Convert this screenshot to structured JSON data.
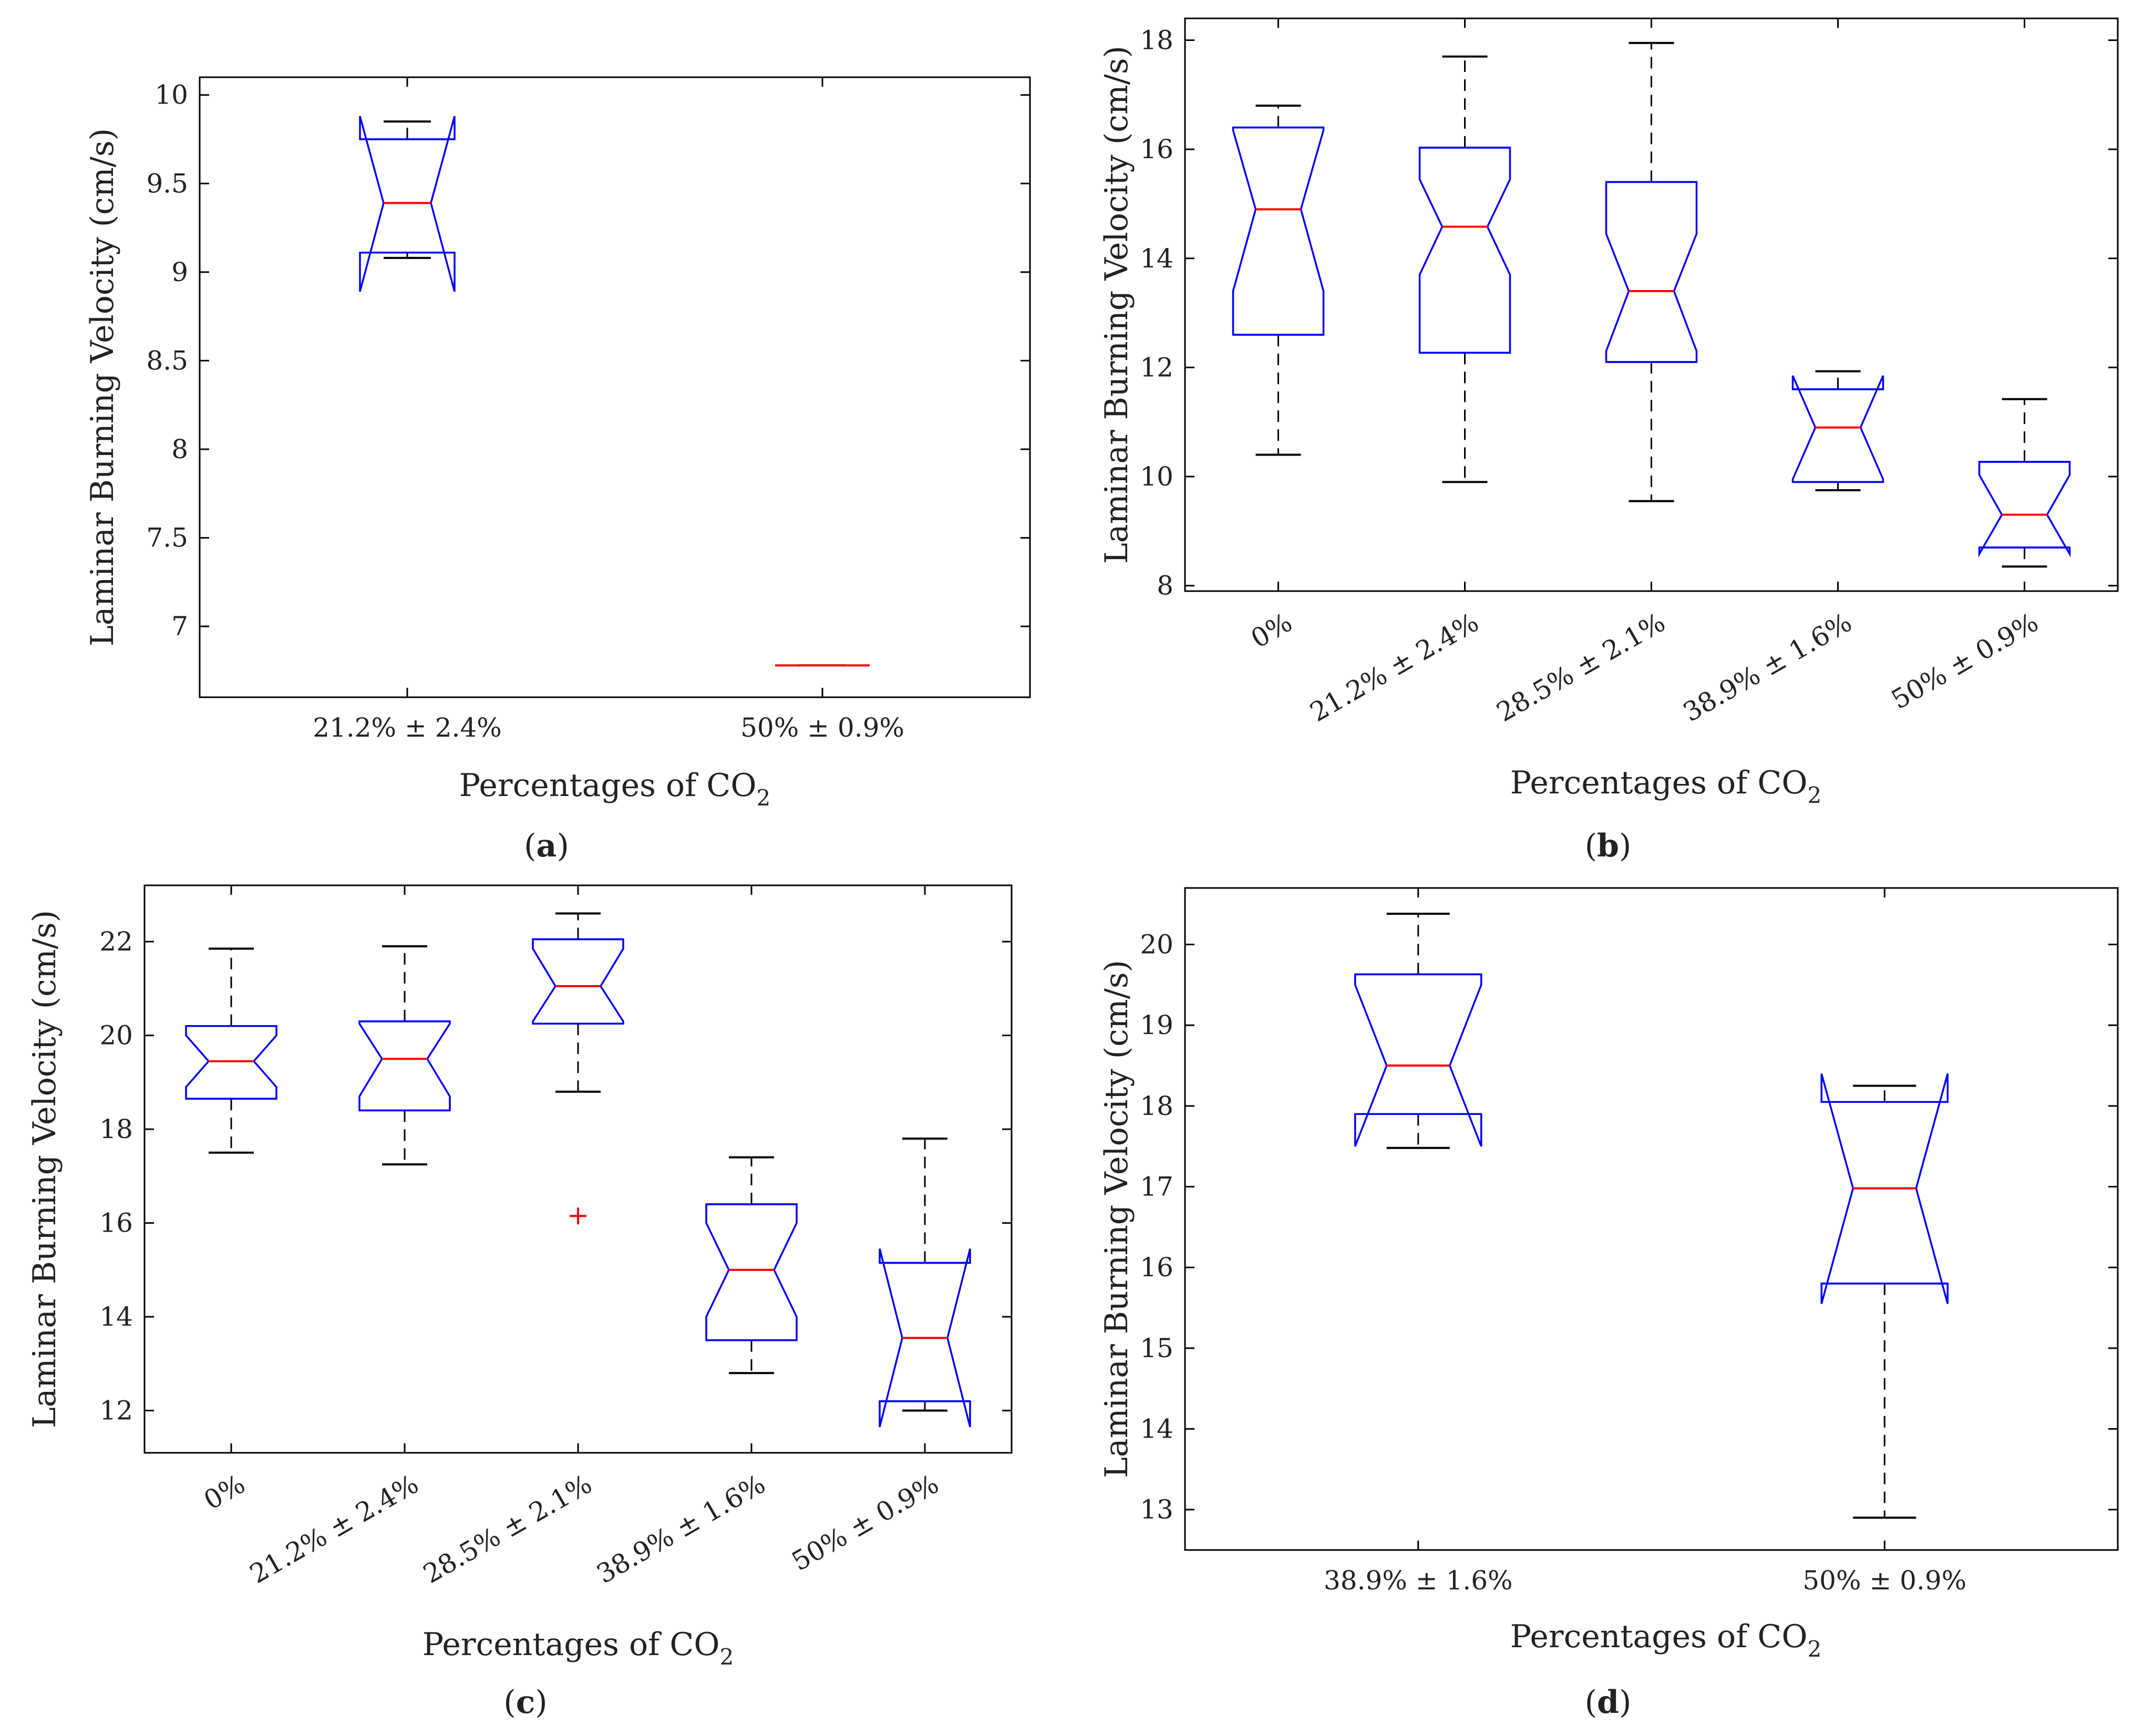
{
  "figure": {
    "panels": [
      {
        "id": "a",
        "label_open": "(",
        "label_letter": "a",
        "label_close": ")"
      },
      {
        "id": "b",
        "label_open": "(",
        "label_letter": "b",
        "label_close": ")"
      },
      {
        "id": "c",
        "label_open": "(",
        "label_letter": "c",
        "label_close": ")"
      },
      {
        "id": "d",
        "label_open": "(",
        "label_letter": "d",
        "label_close": ")"
      }
    ]
  },
  "colors": {
    "box": "#0000ff",
    "median": "#ff0000",
    "whisker": "#000000",
    "outlier": "#ff0000",
    "axis": "#000000"
  },
  "chart_data": [
    {
      "panel": "a",
      "type": "boxplot",
      "notched": true,
      "ylabel": "Laminar Burning Velocity (cm/s)",
      "xlabel_main": "Percentages of CO",
      "xlabel_sub": "2",
      "ylim": [
        6.6,
        10.1
      ],
      "yticks": [
        7,
        7.5,
        8,
        8.5,
        9,
        9.5,
        10
      ],
      "ytick_labels": [
        "7",
        "7.5",
        "8",
        "8.5",
        "9",
        "9.5",
        "10"
      ],
      "tick_rotation": 0,
      "categories": [
        "21.2% ± 2.4%",
        "50% ± 0.9%"
      ],
      "boxes": [
        {
          "q1": 9.11,
          "median": 9.39,
          "q3": 9.75,
          "notch_low": 8.89,
          "notch_high": 9.88,
          "whisker_low": 9.08,
          "whisker_high": 9.85,
          "outliers": []
        },
        {
          "q1": 6.78,
          "median": 6.78,
          "q3": 6.78,
          "notch_low": 6.78,
          "notch_high": 6.78,
          "whisker_low": 6.78,
          "whisker_high": 6.78,
          "outliers": []
        }
      ]
    },
    {
      "panel": "b",
      "type": "boxplot",
      "notched": true,
      "ylabel": "Laminar Burning Velocity (cm/s)",
      "xlabel_main": "Percentages of CO",
      "xlabel_sub": "2",
      "ylim": [
        7.9,
        18.4
      ],
      "yticks": [
        8,
        10,
        12,
        14,
        16,
        18
      ],
      "ytick_labels": [
        "8",
        "10",
        "12",
        "14",
        "16",
        "18"
      ],
      "tick_rotation": -30,
      "categories": [
        "0%",
        "21.2% ± 2.4%",
        "28.5% ± 2.1%",
        "38.9% ± 1.6%",
        "50% ± 0.9%"
      ],
      "boxes": [
        {
          "q1": 12.6,
          "median": 14.9,
          "q3": 16.4,
          "notch_low": 13.4,
          "notch_high": 16.35,
          "whisker_low": 10.4,
          "whisker_high": 16.8,
          "outliers": []
        },
        {
          "q1": 12.27,
          "median": 14.58,
          "q3": 16.03,
          "notch_low": 13.7,
          "notch_high": 15.45,
          "whisker_low": 9.9,
          "whisker_high": 17.7,
          "outliers": []
        },
        {
          "q1": 12.1,
          "median": 13.4,
          "q3": 15.4,
          "notch_low": 12.3,
          "notch_high": 14.45,
          "whisker_low": 9.55,
          "whisker_high": 17.95,
          "outliers": []
        },
        {
          "q1": 9.9,
          "median": 10.9,
          "q3": 11.6,
          "notch_low": 9.95,
          "notch_high": 11.85,
          "whisker_low": 9.75,
          "whisker_high": 11.93,
          "outliers": []
        },
        {
          "q1": 8.7,
          "median": 9.3,
          "q3": 10.27,
          "notch_low": 8.58,
          "notch_high": 10.03,
          "whisker_low": 8.35,
          "whisker_high": 11.42,
          "outliers": []
        }
      ]
    },
    {
      "panel": "c",
      "type": "boxplot",
      "notched": true,
      "ylabel": "Laminar Burning Velocity (cm/s)",
      "xlabel_main": "Percentages of CO",
      "xlabel_sub": "2",
      "ylim": [
        11.1,
        23.2
      ],
      "yticks": [
        12,
        14,
        16,
        18,
        20,
        22
      ],
      "ytick_labels": [
        "12",
        "14",
        "16",
        "18",
        "20",
        "22"
      ],
      "tick_rotation": -30,
      "categories": [
        "0%",
        "21.2% ± 2.4%",
        "28.5% ± 2.1%",
        "38.9% ± 1.6%",
        "50% ± 0.9%"
      ],
      "boxes": [
        {
          "q1": 18.65,
          "median": 19.45,
          "q3": 20.2,
          "notch_low": 18.9,
          "notch_high": 20.0,
          "whisker_low": 17.5,
          "whisker_high": 21.85,
          "outliers": []
        },
        {
          "q1": 18.4,
          "median": 19.5,
          "q3": 20.3,
          "notch_low": 18.7,
          "notch_high": 20.25,
          "whisker_low": 17.25,
          "whisker_high": 21.9,
          "outliers": []
        },
        {
          "q1": 20.25,
          "median": 21.05,
          "q3": 22.05,
          "notch_low": 20.3,
          "notch_high": 21.85,
          "whisker_low": 18.8,
          "whisker_high": 22.6,
          "outliers": [
            16.15
          ]
        },
        {
          "q1": 13.5,
          "median": 15.0,
          "q3": 16.4,
          "notch_low": 14.0,
          "notch_high": 16.0,
          "whisker_low": 12.8,
          "whisker_high": 17.4,
          "outliers": []
        },
        {
          "q1": 12.2,
          "median": 13.55,
          "q3": 15.15,
          "notch_low": 11.65,
          "notch_high": 15.45,
          "whisker_low": 12.0,
          "whisker_high": 17.8,
          "outliers": []
        }
      ]
    },
    {
      "panel": "d",
      "type": "boxplot",
      "notched": true,
      "ylabel": "Laminar Burning Velocity (cm/s)",
      "xlabel_main": "Percentages of CO",
      "xlabel_sub": "2",
      "ylim": [
        12.5,
        20.7
      ],
      "yticks": [
        13,
        14,
        15,
        16,
        17,
        18,
        19,
        20
      ],
      "ytick_labels": [
        "13",
        "14",
        "15",
        "16",
        "17",
        "18",
        "19",
        "20"
      ],
      "tick_rotation": 0,
      "categories": [
        "38.9% ± 1.6%",
        "50% ± 0.9%"
      ],
      "boxes": [
        {
          "q1": 17.9,
          "median": 18.5,
          "q3": 19.63,
          "notch_low": 17.5,
          "notch_high": 19.5,
          "whisker_low": 17.48,
          "whisker_high": 20.38,
          "outliers": []
        },
        {
          "q1": 15.8,
          "median": 16.98,
          "q3": 18.05,
          "notch_low": 15.55,
          "notch_high": 18.4,
          "whisker_low": 12.9,
          "whisker_high": 18.25,
          "outliers": []
        }
      ]
    }
  ]
}
